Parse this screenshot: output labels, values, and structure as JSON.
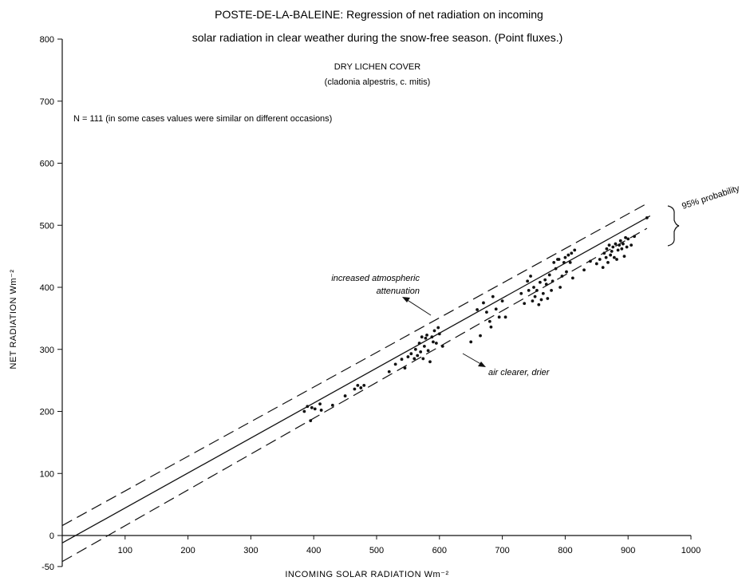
{
  "chart_data": {
    "type": "scatter",
    "title": "POSTE-DE-LA-BALEINE: Regression of net radiation on incoming",
    "title_line2": "solar radiation in clear weather during the snow-free season. (Point fluxes.)",
    "subtitle": "DRY LICHEN COVER",
    "subtitle_line2": "(cladonia alpestris, c. mitis)",
    "note_n": "N = 111  (in some cases values were similar on different occasions)",
    "xlabel": "INCOMING SOLAR RADIATION  Wm⁻²",
    "ylabel": "NET RADIATION  Wm⁻²",
    "xlim": [
      0,
      1000
    ],
    "ylim": [
      -50,
      800
    ],
    "x_ticks": [
      "100",
      "200",
      "300",
      "400",
      "500",
      "600",
      "700",
      "800",
      "900",
      "1000"
    ],
    "y_ticks": [
      "-50",
      "0",
      "100",
      "200",
      "300",
      "400",
      "500",
      "600",
      "700",
      "800"
    ],
    "regression": {
      "x": [
        0,
        935
      ],
      "y": [
        -12,
        515
      ]
    },
    "upper_band": {
      "x": [
        0,
        930
      ],
      "y": [
        16,
        535
      ]
    },
    "lower_band": {
      "x": [
        0,
        930
      ],
      "y": [
        -42,
        495
      ]
    },
    "band_label": "95% probability",
    "annotation_up": "increased atmospheric",
    "annotation_up2": "attenuation",
    "annotation_down": "air clearer, drier",
    "x": [
      385,
      390,
      395,
      397,
      402,
      410,
      412,
      430,
      450,
      465,
      470,
      475,
      480,
      520,
      530,
      540,
      545,
      550,
      555,
      560,
      562,
      565,
      568,
      570,
      572,
      574,
      576,
      578,
      580,
      582,
      585,
      588,
      590,
      592,
      595,
      598,
      600,
      605,
      650,
      660,
      665,
      670,
      675,
      680,
      682,
      685,
      690,
      695,
      700,
      705,
      730,
      735,
      740,
      742,
      745,
      748,
      750,
      752,
      755,
      758,
      760,
      762,
      765,
      768,
      770,
      772,
      775,
      778,
      780,
      782,
      785,
      788,
      790,
      792,
      795,
      798,
      800,
      802,
      805,
      808,
      810,
      812,
      815,
      830,
      840,
      850,
      855,
      860,
      862,
      865,
      866,
      868,
      870,
      872,
      874,
      876,
      878,
      880,
      882,
      884,
      886,
      888,
      890,
      892,
      894,
      896,
      898,
      900,
      905,
      910,
      930
    ],
    "y": [
      200,
      208,
      185,
      206,
      204,
      212,
      202,
      210,
      225,
      236,
      242,
      238,
      242,
      264,
      276,
      284,
      270,
      288,
      293,
      285,
      300,
      290,
      310,
      296,
      320,
      285,
      305,
      318,
      323,
      298,
      280,
      320,
      312,
      330,
      310,
      335,
      325,
      305,
      312,
      364,
      322,
      375,
      360,
      345,
      336,
      385,
      365,
      352,
      378,
      352,
      390,
      374,
      410,
      395,
      418,
      378,
      400,
      385,
      395,
      372,
      408,
      380,
      390,
      412,
      405,
      382,
      420,
      395,
      410,
      440,
      430,
      445,
      445,
      400,
      418,
      440,
      448,
      425,
      452,
      440,
      455,
      415,
      460,
      428,
      442,
      438,
      445,
      432,
      455,
      448,
      462,
      440,
      468,
      452,
      458,
      465,
      448,
      470,
      445,
      460,
      468,
      475,
      462,
      470,
      450,
      480,
      465,
      478,
      468,
      482,
      512
    ]
  }
}
